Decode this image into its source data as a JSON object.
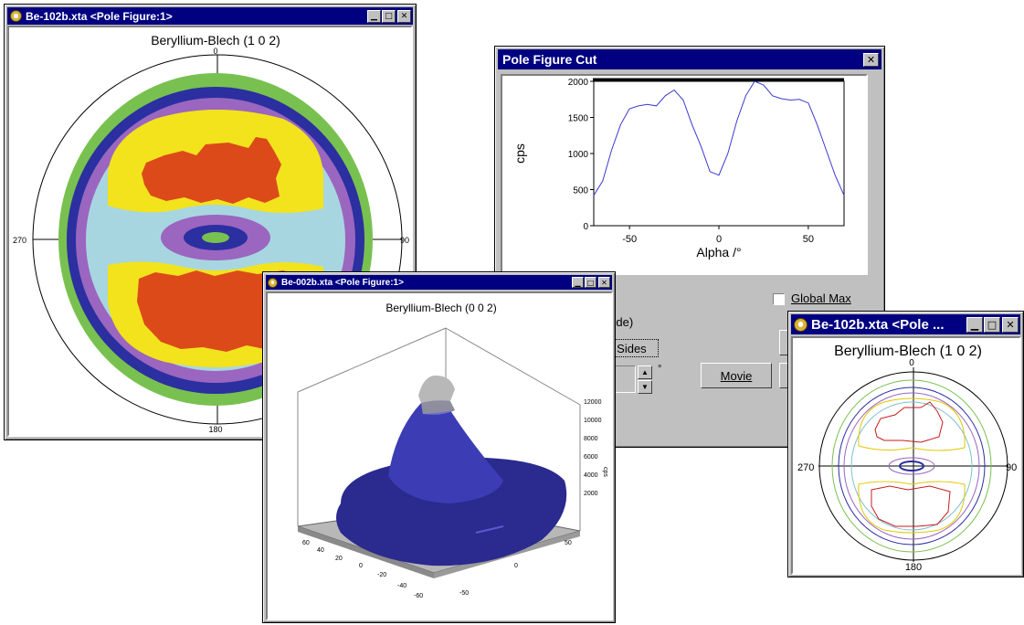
{
  "win1": {
    "title": "Be-102b.xta <Pole Figure:1>",
    "plot_title": "Beryllium-Blech   (1 0 2)",
    "angle_top": "0",
    "angle_left": "270",
    "angle_right": "90",
    "angle_bottom": "180"
  },
  "cut_win": {
    "title": "Pole Figure Cut",
    "global_max_label": "Global Max",
    "one_side_label": "e Side)",
    "both_sides_label": "h Sides",
    "movie_label": "Movie",
    "degree_symbol": "°"
  },
  "win3d": {
    "title": "Be-002b.xta <Pole Figure:1>",
    "plot_title": "Beryllium-Blech   (0 0 2)",
    "z_ticks": [
      "12000",
      "10000",
      "8000",
      "6000",
      "4000",
      "2000"
    ],
    "z_label": "cps",
    "left_ticks": [
      "60",
      "40",
      "20",
      "0",
      "-20",
      "-40",
      "-60"
    ],
    "right_ticks": [
      "50",
      "0",
      "-50"
    ]
  },
  "win_small": {
    "title": "Be-102b.xta <Pole ...",
    "plot_title": "Beryllium-Blech   (1 0 2)",
    "angle_top": "0",
    "angle_left": "270",
    "angle_right": "90",
    "angle_bottom": "180"
  },
  "colors": {
    "titlebar": "#000080",
    "line": "#3a3acf",
    "green": "#78c150",
    "navy": "#2b2fa0",
    "purple": "#9a66c0",
    "lightblue": "#a8d6e0",
    "yellow": "#f2e31c",
    "red": "#dc4a1a"
  },
  "chart_data": {
    "type": "line",
    "xlabel": "Alpha /°",
    "ylabel": "cps",
    "xlim": [
      -70,
      70
    ],
    "ylim": [
      0,
      2000
    ],
    "xticks": [
      -50,
      0,
      50
    ],
    "yticks": [
      0,
      500,
      1000,
      1500,
      2000
    ],
    "series": [
      {
        "x": [
          -70,
          -65,
          -60,
          -55,
          -50,
          -45,
          -40,
          -35,
          -30,
          -25,
          -20,
          -15,
          -10,
          -5,
          0,
          5,
          10,
          15,
          20,
          25,
          30,
          35,
          40,
          45,
          50,
          55,
          60,
          65,
          70
        ],
        "values": [
          420,
          620,
          1050,
          1400,
          1620,
          1660,
          1680,
          1660,
          1800,
          1880,
          1740,
          1400,
          1100,
          750,
          700,
          1000,
          1450,
          1800,
          2000,
          1950,
          1800,
          1760,
          1740,
          1750,
          1700,
          1400,
          1050,
          700,
          420
        ]
      }
    ]
  }
}
